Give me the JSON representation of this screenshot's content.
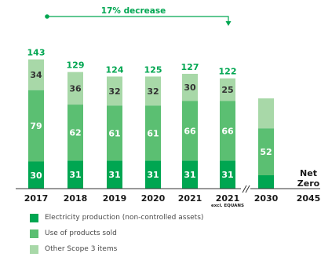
{
  "chart_data": {
    "type": "bar",
    "stacked": true,
    "categories": [
      "2017",
      "2018",
      "2019",
      "2020",
      "2021",
      "2021",
      "2030",
      "2045"
    ],
    "category_sublabels": [
      "",
      "",
      "",
      "",
      "",
      "excl. EQUANS",
      "",
      ""
    ],
    "series": [
      {
        "name": "Electricity production (non-controlled assets)",
        "color": "#00a651",
        "values": [
          30,
          31,
          31,
          31,
          31,
          31,
          null,
          null
        ],
        "value_labels": [
          "30",
          "31",
          "31",
          "31",
          "31",
          "31",
          "",
          ""
        ]
      },
      {
        "name": "Use of products sold",
        "color": "#5bbf72",
        "values": [
          79,
          62,
          61,
          61,
          66,
          66,
          52,
          null
        ],
        "value_labels": [
          "79",
          "62",
          "61",
          "61",
          "66",
          "66",
          "52",
          ""
        ]
      },
      {
        "name": "Other Scope 3 items",
        "color": "#a8d8a8",
        "values": [
          34,
          36,
          32,
          32,
          30,
          25,
          null,
          null
        ],
        "value_labels": [
          "34",
          "36",
          "32",
          "32",
          "30",
          "25",
          "",
          ""
        ]
      }
    ],
    "totals": [
      "143",
      "129",
      "124",
      "125",
      "127",
      "122",
      "",
      ""
    ],
    "annotation": "17% decrease",
    "net_zero_label": [
      "Net",
      "Zero"
    ],
    "axis_break_between": [
      "2021",
      "2021 excl. EQUANS"
    ],
    "ylim": [
      0,
      155
    ],
    "colors": {
      "total_text": "#00a651",
      "annotation": "#00a651",
      "dark_label": "#333333",
      "white_label": "#ffffff"
    }
  }
}
